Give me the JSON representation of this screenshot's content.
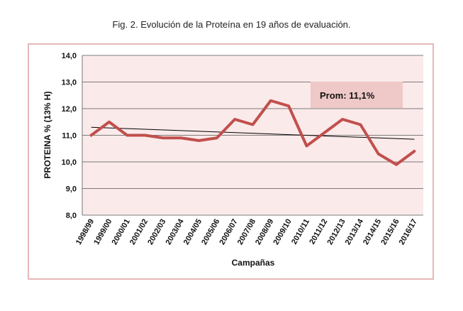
{
  "figure_title": "Fig. 2. Evolución de la Proteína en 19 años de evaluación.",
  "colors": {
    "plot_bg": "#fbeaea",
    "line": "#c0504d",
    "trend": "#000000",
    "frame": "#e7b8b8",
    "grid": "#555555",
    "badge": "#efc8c8"
  },
  "chart_data": {
    "type": "line",
    "title": "Fig. 2. Evolución de la Proteína en 19 años de evaluación.",
    "xlabel": "Campañas",
    "ylabel": "PROTEINA % (13% H)",
    "ylim": [
      8.0,
      14.0
    ],
    "y_ticks": [
      "8,0",
      "9,0",
      "10,0",
      "11,0",
      "12,0",
      "13,0",
      "14,0"
    ],
    "categories": [
      "1998/99",
      "1999/00",
      "2000/01",
      "2001/02",
      "2002/03",
      "2003/04",
      "2004/05",
      "2005/06",
      "2006/07",
      "2007/08",
      "2008/09",
      "2009/10",
      "2010/11",
      "2011/12",
      "2012/13",
      "2013/14",
      "2014/15",
      "2015/16",
      "2016/17"
    ],
    "series": [
      {
        "name": "Proteína",
        "values": [
          11.0,
          11.5,
          11.0,
          11.0,
          10.9,
          10.9,
          10.8,
          10.9,
          11.6,
          11.4,
          12.3,
          12.1,
          10.6,
          11.1,
          11.6,
          11.4,
          10.3,
          9.9,
          10.4
        ]
      }
    ],
    "trendline": {
      "start": 11.3,
      "end": 10.85
    },
    "annotation": "Prom: 11,1%",
    "grid": true
  }
}
